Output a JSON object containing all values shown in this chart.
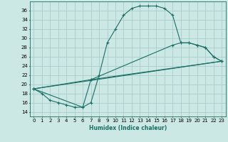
{
  "xlabel": "Humidex (Indice chaleur)",
  "background_color": "#cce8e5",
  "grid_color": "#aaccca",
  "line_color": "#1a6e65",
  "xlim": [
    -0.5,
    23.5
  ],
  "ylim": [
    13,
    38
  ],
  "xticks": [
    0,
    1,
    2,
    3,
    4,
    5,
    6,
    7,
    8,
    9,
    10,
    11,
    12,
    13,
    14,
    15,
    16,
    17,
    18,
    19,
    20,
    21,
    22,
    23
  ],
  "yticks": [
    14,
    16,
    18,
    20,
    22,
    24,
    26,
    28,
    30,
    32,
    34,
    36
  ],
  "line1_x": [
    0,
    1,
    2,
    3,
    4,
    5,
    6,
    7,
    8,
    9,
    10,
    11,
    12,
    13,
    14,
    15,
    16,
    17,
    18,
    19,
    20,
    21,
    22,
    23
  ],
  "line1_y": [
    19,
    18,
    16.5,
    16,
    15.5,
    15,
    15,
    16,
    22,
    29,
    32,
    35,
    36.5,
    37,
    37,
    37,
    36.5,
    35,
    29,
    29,
    28.5,
    28,
    26,
    25
  ],
  "line2_x": [
    0,
    7,
    17,
    18,
    19,
    20,
    21,
    22,
    23
  ],
  "line2_y": [
    19,
    21,
    28.5,
    29,
    29,
    28.5,
    28,
    26,
    25
  ],
  "line3_x": [
    0,
    6,
    7,
    23
  ],
  "line3_y": [
    19,
    15,
    21,
    25
  ],
  "line4_x": [
    0,
    23
  ],
  "line4_y": [
    19,
    25
  ]
}
